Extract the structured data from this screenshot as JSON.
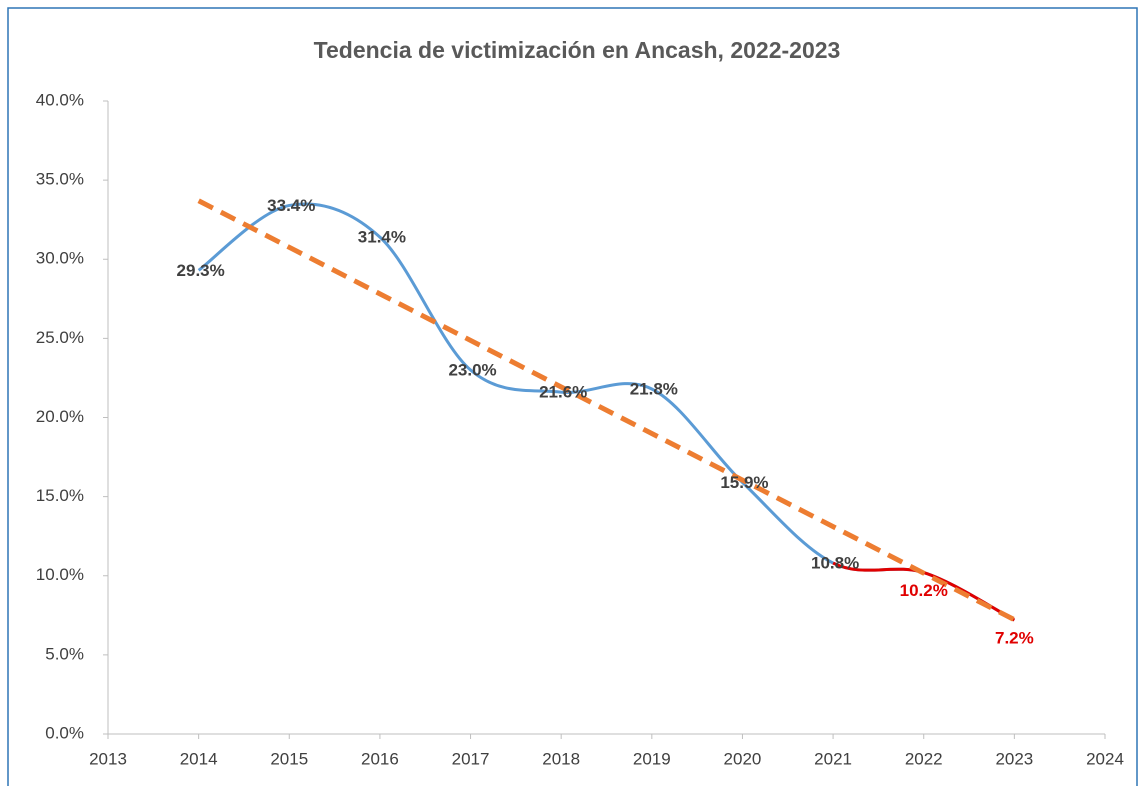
{
  "chart_data": {
    "type": "line",
    "title": "Tedencia de victimización en Ancash, 2022-2023",
    "x": [
      2014,
      2015,
      2016,
      2017,
      2018,
      2019,
      2020,
      2021,
      2022,
      2023
    ],
    "series": [
      {
        "color": "#5b9bd5",
        "values": [
          29.3,
          33.4,
          31.4,
          23.0,
          21.6,
          21.8,
          15.9,
          10.8,
          10.2,
          7.2
        ],
        "value_labels": [
          "29.3%",
          "33.4%",
          "31.4%",
          "23.0%",
          "21.6%",
          "21.8%",
          "15.9%",
          "10.8%",
          "10.2%",
          "7.2%"
        ]
      }
    ],
    "highlight": {
      "color": "#e00000",
      "x": [
        2022,
        2023
      ]
    },
    "trendline": {
      "type": "linear",
      "color": "#ed7d31",
      "dashed": true
    },
    "smooth": true,
    "xlim": [
      2013,
      2024
    ],
    "xticks": [
      2013,
      2014,
      2015,
      2016,
      2017,
      2018,
      2019,
      2020,
      2021,
      2022,
      2023,
      2024
    ],
    "ylim": [
      0,
      40
    ],
    "yticks": [
      {
        "value": 0,
        "label": "0.0%"
      },
      {
        "value": 5,
        "label": "5.0%"
      },
      {
        "value": 10,
        "label": "10.0%"
      },
      {
        "value": 15,
        "label": "15.0%"
      },
      {
        "value": 20,
        "label": "20.0%"
      },
      {
        "value": 25,
        "label": "25.0%"
      },
      {
        "value": 30,
        "label": "30.0%"
      },
      {
        "value": 35,
        "label": "35.0%"
      },
      {
        "value": 40,
        "label": "40.0%"
      }
    ],
    "grid": false
  }
}
